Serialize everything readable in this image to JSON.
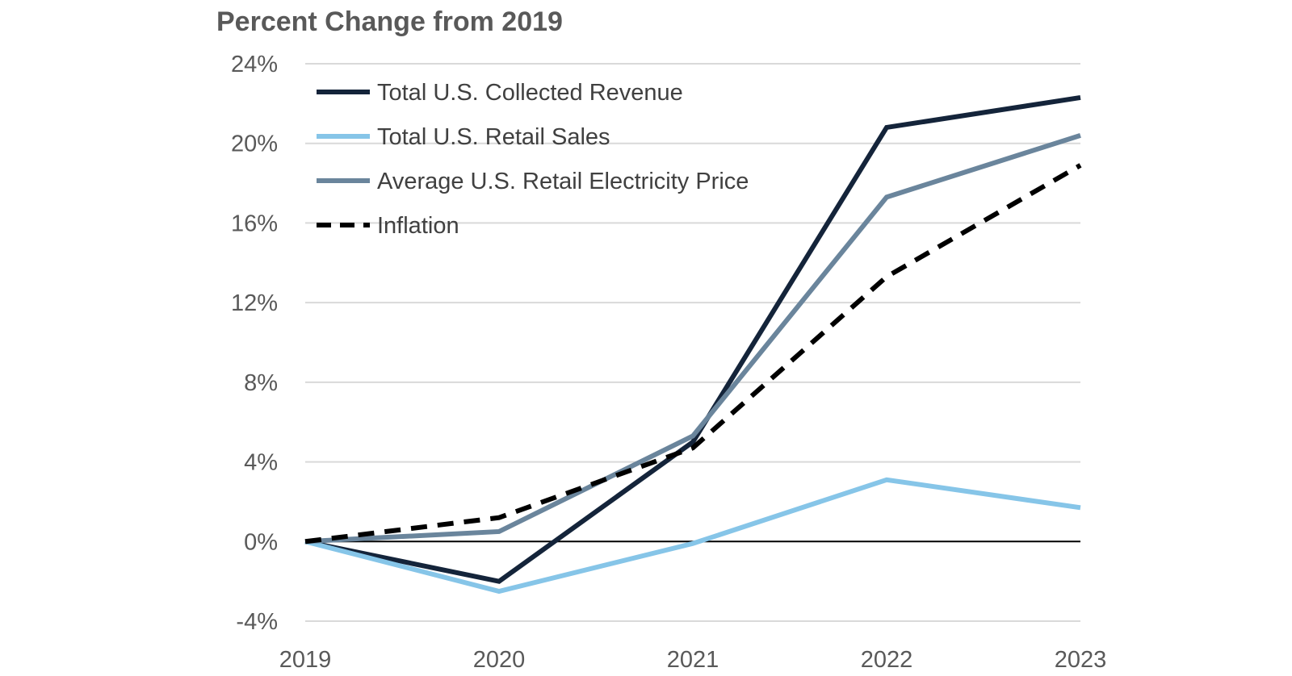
{
  "chart_data": {
    "type": "line",
    "title": "Percent Change from 2019",
    "xlabel": "",
    "ylabel": "",
    "x": [
      "2019",
      "2020",
      "2021",
      "2022",
      "2023"
    ],
    "ylim": [
      -4,
      24
    ],
    "yticks": [
      -4,
      0,
      4,
      8,
      12,
      16,
      20,
      24
    ],
    "ytick_labels": [
      "-4%",
      "0%",
      "4%",
      "8%",
      "12%",
      "16%",
      "20%",
      "24%"
    ],
    "grid": true,
    "legend_position": "top-left",
    "series": [
      {
        "name": "Total U.S. Collected Revenue",
        "values": [
          0,
          -2.0,
          5.0,
          20.8,
          22.3
        ],
        "color": "#14243a",
        "dash": false
      },
      {
        "name": "Total U.S. Retail Sales",
        "values": [
          0,
          -2.5,
          -0.1,
          3.1,
          1.7
        ],
        "color": "#86c5e8",
        "dash": false
      },
      {
        "name": "Average U.S. Retail Electricity Price",
        "values": [
          0,
          0.5,
          5.3,
          17.3,
          20.4
        ],
        "color": "#6a859c",
        "dash": false
      },
      {
        "name": "Inflation",
        "values": [
          0,
          1.2,
          4.7,
          13.3,
          18.9
        ],
        "color": "#000000",
        "dash": true
      }
    ]
  }
}
